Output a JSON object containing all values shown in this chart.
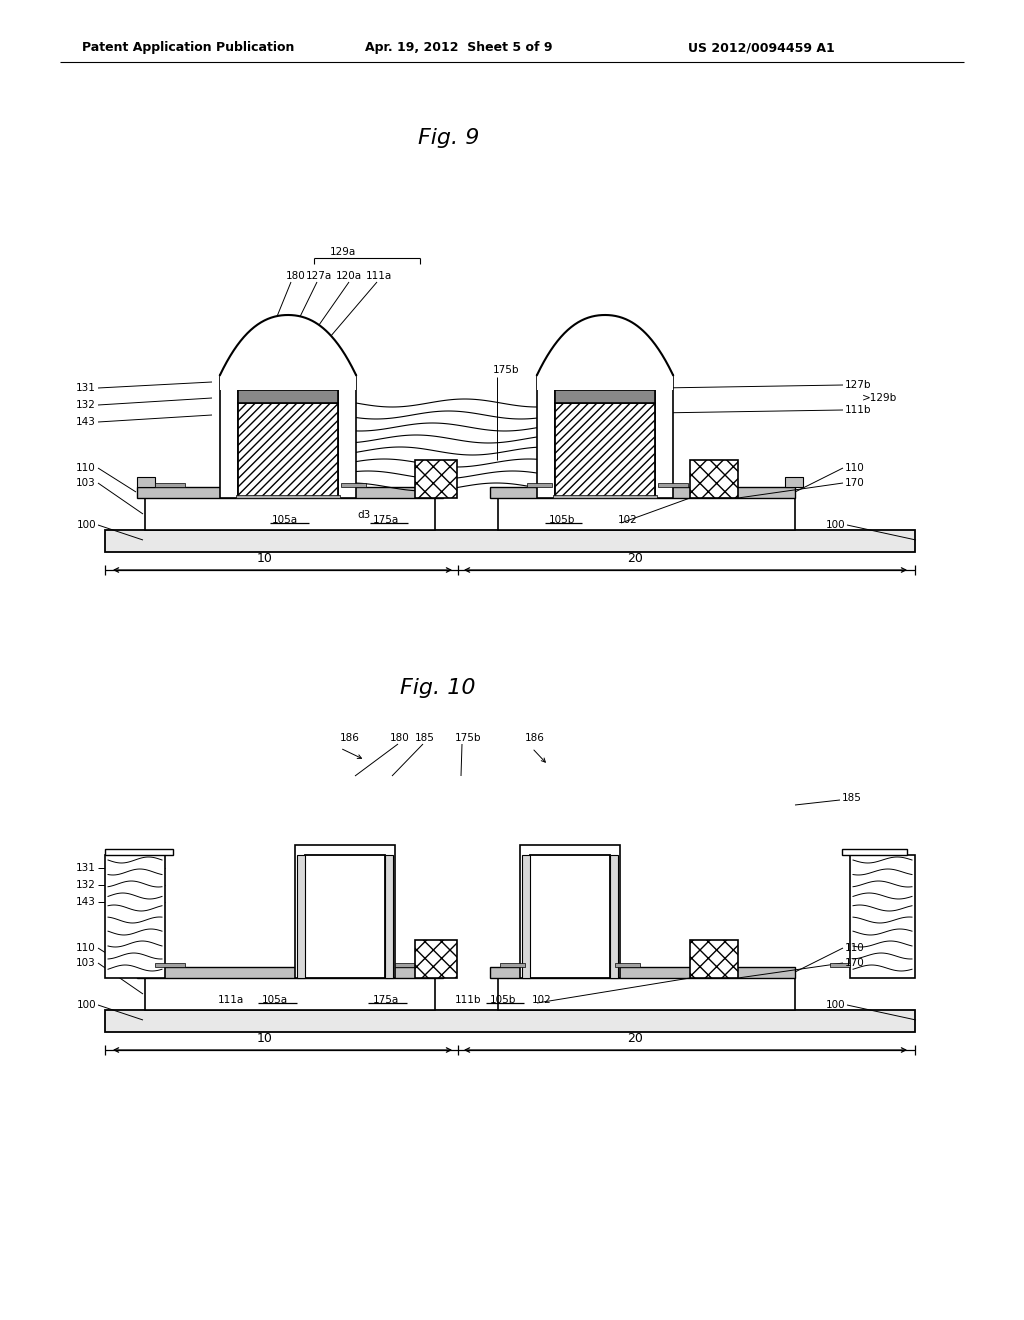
{
  "header_left": "Patent Application Publication",
  "header_mid": "Apr. 19, 2012  Sheet 5 of 9",
  "header_right": "US 2012/0094459 A1",
  "fig9_title": "Fig. 9",
  "fig10_title": "Fig. 10",
  "bg_color": "#ffffff"
}
